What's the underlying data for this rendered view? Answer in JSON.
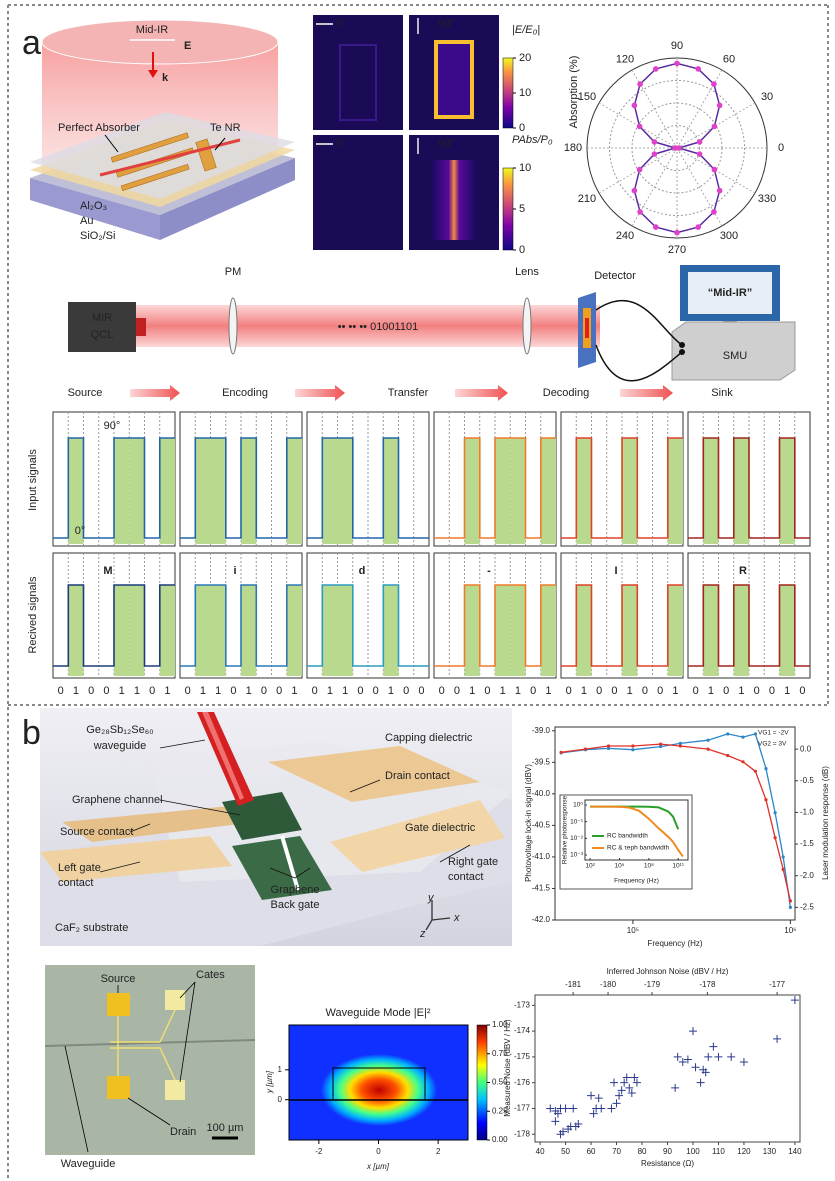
{
  "panel_a": {
    "label": "a",
    "schematic": {
      "beam": "Mid-IR",
      "field": "E",
      "wavevector": "k",
      "absorber": "Perfect Absorber",
      "nanoribbon": "Te NR",
      "layers": [
        "Al₂O₃",
        "Au",
        "SiO₂/Si"
      ]
    },
    "field_maps": {
      "angles": [
        "0°",
        "90°",
        "0°",
        "90°"
      ],
      "colorbars": [
        {
          "label": "|E/E₀|",
          "lim": [
            0,
            20
          ],
          "ticks": [
            0,
            10,
            20
          ]
        },
        {
          "label": "PAbs/P₀",
          "lim": [
            0,
            10
          ],
          "ticks": [
            0,
            5,
            10
          ]
        }
      ]
    },
    "polar": {
      "type": "polar",
      "ylabel": "Absorption (%)",
      "angle_ticks": [
        0,
        30,
        60,
        90,
        120,
        150,
        180,
        210,
        240,
        270,
        300,
        330
      ],
      "rlim": [
        0,
        100
      ],
      "angles": [
        0,
        15,
        30,
        45,
        60,
        75,
        90,
        105,
        120,
        135,
        150,
        165,
        180,
        195,
        210,
        225,
        240,
        255,
        270,
        285,
        300,
        315,
        330,
        345
      ],
      "values": [
        2,
        26,
        48,
        67,
        82,
        91,
        94,
        91,
        82,
        67,
        48,
        26,
        2,
        26,
        48,
        67,
        82,
        91,
        94,
        91,
        82,
        67,
        48,
        26
      ],
      "line_color": "#5b2ca0",
      "marker_color": "#e040c8"
    },
    "setup": {
      "source": [
        "MIR",
        "QCL"
      ],
      "modulator": "PM",
      "bits": "•• •• •• 01001101",
      "lens": "Lens",
      "detector": "Detector",
      "display": "“Mid-IR”",
      "smu": "SMU"
    },
    "flow": [
      "Source",
      "Encoding",
      "Transfer",
      "Decoding",
      "Sink"
    ],
    "signals": {
      "input_label": "Input signals",
      "received_label": "Recived signals",
      "high_state": "90°",
      "low_state": "0°",
      "fill_color": "#b9d98f",
      "channels": [
        {
          "letter": "M",
          "bits": [
            0,
            1,
            0,
            0,
            1,
            1,
            0,
            1
          ],
          "input_color": "#2066a8",
          "received_color": "#1c3d78"
        },
        {
          "letter": "i",
          "bits": [
            0,
            1,
            1,
            0,
            1,
            0,
            0,
            1
          ],
          "input_color": "#2066a8",
          "received_color": "#2a78b5"
        },
        {
          "letter": "d",
          "bits": [
            0,
            1,
            1,
            0,
            0,
            1,
            0,
            0
          ],
          "input_color": "#2066a8",
          "received_color": "#2b9cc0"
        },
        {
          "letter": "-",
          "bits": [
            0,
            0,
            1,
            0,
            1,
            1,
            0,
            1
          ],
          "input_color": "#f07a2a",
          "received_color": "#f07a2a"
        },
        {
          "letter": "I",
          "bits": [
            0,
            1,
            0,
            0,
            1,
            0,
            0,
            1
          ],
          "input_color": "#e0402a",
          "received_color": "#e0402a"
        },
        {
          "letter": "R",
          "bits": [
            0,
            1,
            0,
            1,
            0,
            0,
            1,
            0
          ],
          "input_color": "#a3261e",
          "received_color": "#a3261e"
        }
      ]
    }
  },
  "panel_b": {
    "label": "b",
    "device": {
      "waveguide": [
        "Ge₂₈Sb₁₂Se₆₀",
        "waveguide"
      ],
      "capping": "Capping dielectric",
      "drain": "Drain contact",
      "channel": "Graphene channel",
      "source": "Source contact",
      "gate_dielectric": "Gate dielectric",
      "left_gate": [
        "Left gate",
        "contact"
      ],
      "right_gate": [
        "Right gate",
        "contact"
      ],
      "back_gate": [
        "Graphene",
        "Back gate"
      ],
      "substrate": "CaF₂ substrate",
      "axes": [
        "y",
        "x",
        "z"
      ]
    },
    "frequency_response": {
      "type": "line",
      "x_scale": "log",
      "xlabel": "Frequency (Hz)",
      "ylabel": "Photovoltage lock-in signal (dBV)",
      "y2label": "Laser modulation response (dB)",
      "annotations": [
        "VG1 = -2V",
        "VG2 = 3V"
      ],
      "xlim": [
        32000,
        1070000
      ],
      "xticks": [
        {
          "value": 100000,
          "label": "10⁵"
        },
        {
          "value": 1000000,
          "label": "10⁶"
        }
      ],
      "ylim": [
        -42.0,
        -38.94
      ],
      "yticks": [
        {
          "value": -39,
          "label": "-39.0"
        },
        -39.5,
        {
          "value": -40,
          "label": "-40.0"
        },
        -40.5,
        {
          "value": -41,
          "label": "-41.0"
        },
        -41.5,
        {
          "value": -42,
          "label": "-42.0"
        }
      ],
      "y2lim": [
        -2.7,
        0.35
      ],
      "y2ticks": [
        {
          "value": 0,
          "label": "0.0"
        },
        -0.5,
        {
          "value": -1,
          "label": "-1.0"
        },
        -1.5,
        {
          "value": -2,
          "label": "-2.0"
        },
        -2.5
      ],
      "x": [
        35000,
        50000,
        70000,
        100000,
        150000,
        200000,
        300000,
        400000,
        500000,
        600000,
        700000,
        800000,
        900000,
        1000000
      ],
      "series": [
        {
          "color": "#2a86c8",
          "values": [
            -39.35,
            -39.3,
            -39.28,
            -39.3,
            -39.25,
            -39.2,
            -39.15,
            -39.05,
            -39.1,
            -39.05,
            -39.6,
            -40.3,
            -41.0,
            -41.8
          ]
        },
        {
          "color": "#e0302a",
          "axis": "y2",
          "values": [
            -0.05,
            0.0,
            0.05,
            0.05,
            0.08,
            0.05,
            0.0,
            -0.1,
            -0.2,
            -0.35,
            -0.8,
            -1.4,
            -1.9,
            -2.4
          ]
        }
      ],
      "inset": {
        "type": "line",
        "x_scale": "log",
        "y_scale": "log",
        "xlabel": "Frequency (Hz)",
        "ylabel": "Relative photoresponse",
        "xlim": [
          30,
          1000000000000
        ],
        "ylim": [
          0.0005,
          2
        ],
        "xticks": [
          {
            "value": 100,
            "label": "10²"
          },
          {
            "value": 100000,
            "label": "10⁵"
          },
          {
            "value": 100000000,
            "label": "10⁸"
          },
          {
            "value": 100000000000,
            "label": "10¹¹"
          }
        ],
        "yticks": [
          {
            "value": 1,
            "label": "10⁰"
          },
          {
            "value": 0.1,
            "label": "10⁻¹"
          },
          {
            "value": 0.01,
            "label": "10⁻²"
          },
          {
            "value": 0.001,
            "label": "10⁻³"
          }
        ],
        "x": [
          100,
          1000,
          10000,
          100000,
          1000000,
          10000000,
          100000000,
          1000000000,
          10000000000,
          30000000000,
          100000000000,
          300000000000
        ],
        "series": [
          {
            "name": "RC bandwidth",
            "color": "#2aa02a",
            "values": [
              0.8,
              0.8,
              0.8,
              0.8,
              0.8,
              0.8,
              0.79,
              0.72,
              0.4,
              0.2,
              0.035,
              null
            ]
          },
          {
            "name": "RC & τeph bandwidth",
            "color": "#f08a20",
            "values": [
              0.8,
              0.8,
              0.8,
              0.78,
              0.7,
              0.45,
              0.15,
              0.04,
              0.012,
              0.006,
              0.002,
              0.0008
            ]
          }
        ]
      }
    },
    "micrograph": {
      "source": "Source",
      "gates": "Cates",
      "scale_bar": "100 µm",
      "waveguide": "Waveguide",
      "drain": "Drain"
    },
    "mode": {
      "type": "heatmap",
      "title": "Waveguide Mode |E|²",
      "xlabel": "x [µm]",
      "ylabel": "y [µm]",
      "xlim": [
        -3,
        3
      ],
      "xticks": [
        -2,
        0,
        2
      ],
      "ylim": [
        -1.35,
        2.5
      ],
      "yticks": [
        0,
        1
      ],
      "clim": [
        0,
        1
      ],
      "cticks": [
        {
          "value": 0,
          "label": "0.00"
        },
        0.25,
        {
          "value": 0.5,
          "label": "0.50"
        },
        0.75,
        {
          "value": 1,
          "label": "1.00"
        }
      ]
    },
    "noise": {
      "type": "scatter",
      "xlabel": "Resistance (Ω)",
      "ylabel": "Measured Noise (dBV / Hz)",
      "x2label": "Inferred Johnson Noise (dBV / Hz)",
      "xlim": [
        38,
        142
      ],
      "xticks": [
        40,
        50,
        60,
        70,
        80,
        90,
        100,
        110,
        120,
        130,
        140
      ],
      "ylim": [
        -178.3,
        -172.6
      ],
      "yticks": [
        -178,
        -177,
        -176,
        -175,
        -174,
        -173
      ],
      "x2ticks": [
        -181,
        -180,
        -179,
        -178,
        -177
      ],
      "color": "#2b3a8c",
      "x": [
        44,
        46,
        47,
        48,
        46,
        48,
        49,
        50,
        51,
        52,
        53,
        54,
        55,
        60,
        61,
        62,
        63,
        64,
        68,
        69,
        70,
        71,
        72,
        73,
        74,
        75,
        76,
        77,
        78,
        93,
        94,
        96,
        98,
        100,
        101,
        103,
        104,
        105,
        106,
        108,
        110,
        115,
        120,
        133,
        140
      ],
      "values": [
        -177.0,
        -177.1,
        -177.2,
        -177.0,
        -177.5,
        -178.0,
        -177.9,
        -177.0,
        -177.8,
        -177.7,
        -177.0,
        -177.7,
        -177.6,
        -176.5,
        -177.2,
        -177.0,
        -176.6,
        -177.0,
        -177.0,
        -176.0,
        -176.8,
        -176.5,
        -176.3,
        -176.0,
        -175.8,
        -176.2,
        -176.4,
        -175.8,
        -176.0,
        -176.2,
        -175.0,
        -175.2,
        -175.1,
        -174.0,
        -175.4,
        -176.0,
        -175.5,
        -175.6,
        -175.0,
        -174.6,
        -175.0,
        -175.0,
        -175.2,
        -174.3,
        -172.8
      ]
    }
  }
}
